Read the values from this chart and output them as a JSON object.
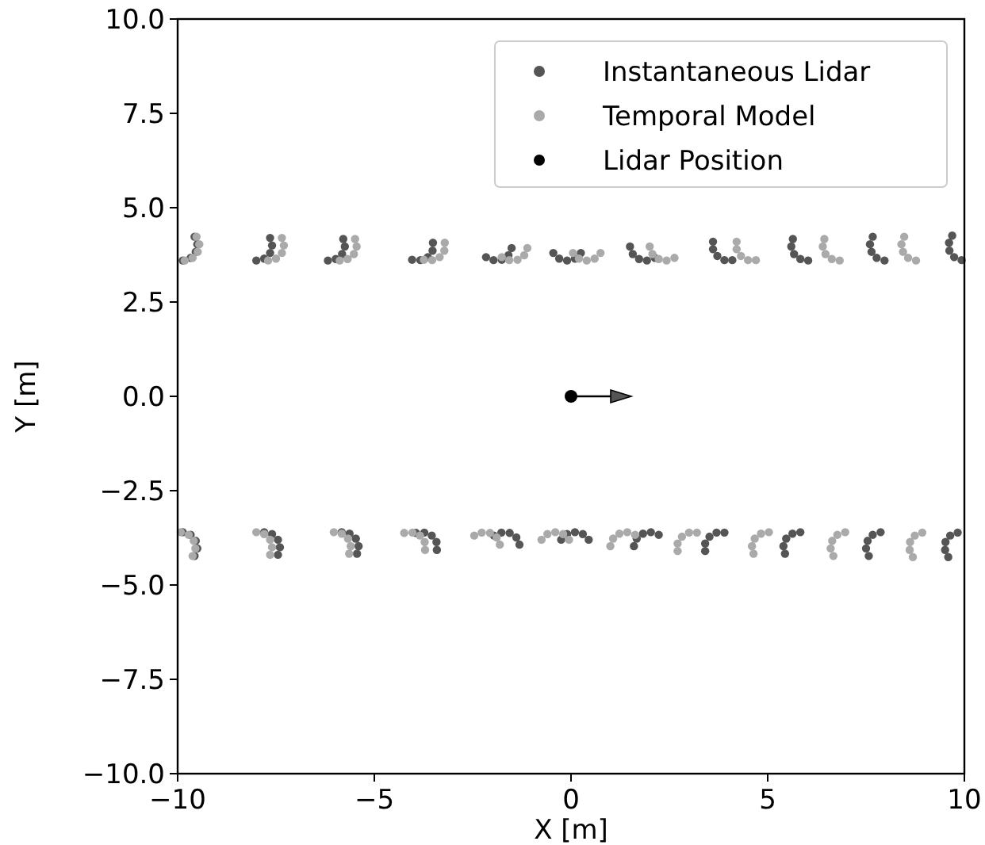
{
  "chart_data": {
    "type": "scatter",
    "xlabel": "X [m]",
    "ylabel": "Y [m]",
    "xlim": [
      -10,
      10
    ],
    "ylim": [
      -10,
      10
    ],
    "xticks": [
      {
        "value": -10,
        "label": "−10"
      },
      {
        "value": -5,
        "label": "−5"
      },
      0,
      5,
      10
    ],
    "yticks": [
      {
        "value": -10,
        "label": "−10.0"
      },
      {
        "value": -7.5,
        "label": "−7.5"
      },
      {
        "value": -5,
        "label": "−5.0"
      },
      {
        "value": -2.5,
        "label": "−2.5"
      },
      {
        "value": 0,
        "label": "0.0"
      },
      {
        "value": 2.5,
        "label": "2.5"
      },
      {
        "value": 5,
        "label": "5.0"
      },
      {
        "value": 7.5,
        "label": "7.5"
      },
      {
        "value": 10,
        "label": "10.0"
      }
    ],
    "grid": false,
    "legend": "top right",
    "marker": "circle",
    "series": [
      {
        "name": "Instantaneous Lidar",
        "color": "#555555",
        "x": [
          -9.87,
          -9.67,
          -9.54,
          -9.5,
          -9.57,
          -8,
          -7.8,
          -7.65,
          -7.6,
          -7.65,
          -6.18,
          -5.98,
          -5.82,
          -5.75,
          -5.79,
          -4.04,
          -3.83,
          -3.64,
          -3.52,
          -3.51,
          -2.16,
          -1.97,
          -1.76,
          -1.59,
          -1.51,
          -0.45,
          -0.3,
          -0.1,
          0.1,
          0.25,
          1.5,
          1.57,
          1.73,
          1.93,
          2.13,
          3.61,
          3.61,
          3.72,
          3.9,
          4.1,
          5.64,
          5.6,
          5.67,
          5.83,
          6.03,
          7.67,
          7.6,
          7.64,
          7.77,
          7.97,
          9.69,
          9.61,
          9.62,
          9.74,
          9.93,
          -9.87,
          -9.67,
          -9.54,
          -9.5,
          -9.57,
          -7.8,
          -7.6,
          -7.45,
          -7.4,
          -7.45,
          -5.83,
          -5.63,
          -5.47,
          -5.4,
          -5.44,
          -3.94,
          -3.73,
          -3.54,
          -3.42,
          -3.41,
          -1.96,
          -1.77,
          -1.56,
          -1.39,
          -1.31,
          -0.25,
          -0.1,
          0.1,
          0.3,
          0.45,
          1.6,
          1.67,
          1.83,
          2.03,
          2.23,
          3.41,
          3.41,
          3.52,
          3.7,
          3.9,
          5.44,
          5.4,
          5.47,
          5.63,
          5.83,
          7.57,
          7.5,
          7.54,
          7.67,
          7.87,
          9.59,
          9.51,
          9.52,
          9.64,
          9.83
        ],
        "values": [
          3.6,
          3.67,
          3.83,
          4.03,
          4.23,
          3.6,
          3.65,
          3.8,
          4.0,
          4.2,
          3.6,
          3.64,
          3.77,
          3.97,
          4.17,
          3.62,
          3.61,
          3.69,
          3.86,
          4.07,
          3.69,
          3.61,
          3.62,
          3.74,
          3.93,
          3.8,
          3.65,
          3.6,
          3.65,
          3.8,
          3.97,
          3.77,
          3.64,
          3.6,
          3.67,
          4.1,
          3.9,
          3.72,
          3.61,
          3.61,
          4.17,
          3.97,
          3.77,
          3.64,
          3.6,
          4.23,
          4.03,
          3.83,
          3.67,
          3.6,
          4.26,
          4.07,
          3.86,
          3.69,
          3.61,
          -3.6,
          -3.67,
          -3.83,
          -4.03,
          -4.23,
          -3.6,
          -3.65,
          -3.8,
          -4.0,
          -4.2,
          -3.6,
          -3.64,
          -3.77,
          -3.97,
          -4.17,
          -3.62,
          -3.61,
          -3.69,
          -3.86,
          -4.07,
          -3.69,
          -3.61,
          -3.62,
          -3.74,
          -3.93,
          -3.8,
          -3.65,
          -3.6,
          -3.65,
          -3.8,
          -3.97,
          -3.77,
          -3.64,
          -3.6,
          -3.67,
          -4.1,
          -3.9,
          -3.72,
          -3.61,
          -3.61,
          -4.17,
          -3.97,
          -3.77,
          -3.64,
          -3.6,
          -4.23,
          -4.03,
          -3.83,
          -3.67,
          -3.6,
          -4.26,
          -4.07,
          -3.86,
          -3.69,
          -3.61
        ]
      },
      {
        "name": "Temporal Model",
        "color": "#aaaaaa",
        "x": [
          -9.82,
          -9.62,
          -9.49,
          -9.45,
          -9.52,
          -7.7,
          -7.5,
          -7.35,
          -7.3,
          -7.35,
          -5.88,
          -5.68,
          -5.52,
          -5.45,
          -5.49,
          -3.74,
          -3.53,
          -3.34,
          -3.22,
          -3.21,
          -1.76,
          -1.57,
          -1.36,
          -1.19,
          -1.11,
          0.05,
          0.2,
          0.4,
          0.6,
          0.75,
          2.0,
          2.07,
          2.23,
          2.43,
          2.63,
          4.21,
          4.21,
          4.32,
          4.5,
          4.7,
          6.44,
          6.4,
          6.47,
          6.63,
          6.83,
          8.47,
          8.4,
          8.44,
          8.57,
          8.77,
          -9.92,
          -9.72,
          -9.59,
          -9.55,
          -9.62,
          -8,
          -7.8,
          -7.65,
          -7.6,
          -7.65,
          -6.03,
          -5.83,
          -5.67,
          -5.6,
          -5.64,
          -4.24,
          -4.03,
          -3.84,
          -3.72,
          -3.71,
          -2.46,
          -2.27,
          -2.06,
          -1.89,
          -1.81,
          -0.75,
          -0.6,
          -0.4,
          -0.2,
          -0.05,
          1.0,
          1.07,
          1.23,
          1.43,
          1.63,
          2.71,
          2.71,
          2.82,
          3.0,
          3.2,
          4.64,
          4.6,
          4.67,
          4.83,
          5.03,
          6.67,
          6.6,
          6.64,
          6.77,
          6.97,
          8.69,
          8.61,
          8.62,
          8.74,
          8.93
        ],
        "values": [
          3.6,
          3.67,
          3.83,
          4.03,
          4.23,
          3.6,
          3.65,
          3.8,
          4.0,
          4.2,
          3.6,
          3.64,
          3.77,
          3.97,
          4.17,
          3.62,
          3.61,
          3.69,
          3.86,
          4.07,
          3.69,
          3.61,
          3.62,
          3.74,
          3.93,
          3.8,
          3.65,
          3.6,
          3.65,
          3.8,
          3.97,
          3.77,
          3.64,
          3.6,
          3.67,
          4.1,
          3.9,
          3.72,
          3.61,
          3.61,
          4.17,
          3.97,
          3.77,
          3.64,
          3.6,
          4.23,
          4.03,
          3.83,
          3.67,
          3.6,
          -3.6,
          -3.67,
          -3.83,
          -4.03,
          -4.23,
          -3.6,
          -3.65,
          -3.8,
          -4.0,
          -4.2,
          -3.6,
          -3.64,
          -3.77,
          -3.97,
          -4.17,
          -3.62,
          -3.61,
          -3.69,
          -3.86,
          -4.07,
          -3.69,
          -3.61,
          -3.62,
          -3.74,
          -3.93,
          -3.8,
          -3.65,
          -3.6,
          -3.65,
          -3.8,
          -3.97,
          -3.77,
          -3.64,
          -3.6,
          -3.67,
          -4.1,
          -3.9,
          -3.72,
          -3.61,
          -3.61,
          -4.17,
          -3.97,
          -3.77,
          -3.64,
          -3.6,
          -4.23,
          -4.03,
          -3.83,
          -3.67,
          -3.6,
          -4.26,
          -4.07,
          -3.86,
          -3.69,
          -3.61
        ]
      },
      {
        "name": "Lidar Position",
        "color": "#000000",
        "x": [
          0
        ],
        "values": [
          0
        ]
      }
    ]
  }
}
